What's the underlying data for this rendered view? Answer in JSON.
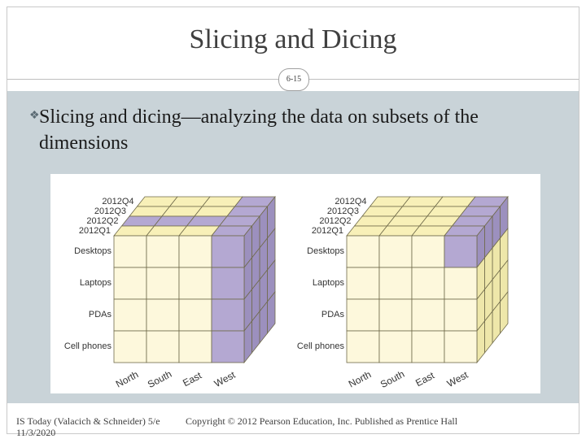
{
  "slide": {
    "title": "Slicing and Dicing",
    "number": "6-15",
    "bullet": "Slicing and dicing—analyzing the data on subsets of the dimensions"
  },
  "cube_left": {
    "quarters": [
      "2012Q4",
      "2012Q3",
      "2012Q2",
      "2012Q1"
    ],
    "products": [
      "Desktops",
      "Laptops",
      "PDAs",
      "Cell phones"
    ],
    "regions": [
      "North",
      "South",
      "East",
      "West"
    ],
    "highlight": "2012Q2 slice and West column"
  },
  "cube_right": {
    "quarters": [
      "2012Q4",
      "2012Q3",
      "2012Q2",
      "2012Q1"
    ],
    "products": [
      "Desktops",
      "Laptops",
      "PDAs",
      "Cell phones"
    ],
    "regions": [
      "North",
      "South",
      "East",
      "West"
    ],
    "highlight": "Desktops / West cell block"
  },
  "colors": {
    "cell": "#fdf8dc",
    "top_cell": "#f8f0b8",
    "side_cell": "#eee7aa",
    "highlight": "#b4a8d2",
    "highlight_dark": "#9c90be",
    "content_bg": "#c9d3d8"
  },
  "footer": {
    "source": "IS Today (Valacich & Schneider) 5/e",
    "date": "11/3/2020",
    "copyright": "Copyright © 2012 Pearson Education, Inc. Published as Prentice Hall"
  }
}
